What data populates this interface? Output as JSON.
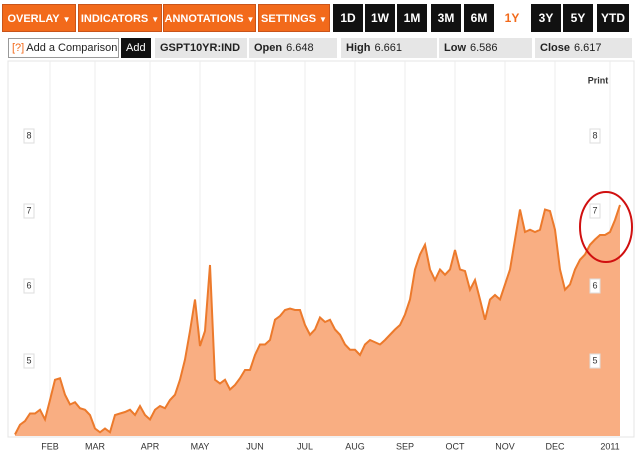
{
  "toolbar": {
    "menus": [
      "OVERLAY",
      "INDICATORS",
      "ANNOTATIONS",
      "SETTINGS"
    ],
    "ranges": [
      "1D",
      "1W",
      "1M",
      "3M",
      "6M",
      "1Y",
      "3Y",
      "5Y",
      "YTD"
    ],
    "selected": "1Y"
  },
  "quote": {
    "help": "[?]",
    "comparison": "Add a Comparison",
    "add": "Add",
    "ticker": "GSPT10YR:IND",
    "fields": [
      {
        "label": "Open",
        "value": 6.648
      },
      {
        "label": "High",
        "value": 6.661
      },
      {
        "label": "Low",
        "value": 6.586
      },
      {
        "label": "Close",
        "value": 6.617
      }
    ]
  },
  "print": "Print",
  "chart_data": {
    "type": "area",
    "line_color": "#ec7a2c",
    "fill_color": "#f9ae82",
    "categories": [
      null,
      null,
      null,
      null,
      null,
      null,
      null,
      "FEB",
      null,
      null,
      null,
      null,
      null,
      null,
      null,
      null,
      "MAR",
      null,
      null,
      null,
      null,
      null,
      null,
      null,
      null,
      null,
      null,
      "APR",
      null,
      null,
      null,
      null,
      null,
      null,
      null,
      null,
      null,
      "MAY",
      null,
      null,
      null,
      null,
      null,
      null,
      null,
      null,
      null,
      null,
      "JUN",
      null,
      null,
      null,
      null,
      null,
      null,
      null,
      null,
      null,
      "JUL",
      null,
      null,
      null,
      null,
      null,
      null,
      null,
      null,
      null,
      "AUG",
      null,
      null,
      null,
      null,
      null,
      null,
      null,
      null,
      null,
      "SEP",
      null,
      null,
      null,
      null,
      null,
      null,
      null,
      null,
      null,
      "OCT",
      null,
      null,
      null,
      null,
      null,
      null,
      null,
      null,
      null,
      "NOV",
      null,
      null,
      null,
      null,
      null,
      null,
      null,
      null,
      null,
      "DEC",
      null,
      null,
      null,
      null,
      null,
      null,
      null,
      null,
      null,
      null,
      "2011",
      null,
      null
    ],
    "values": [
      4.02,
      4.15,
      4.2,
      4.3,
      4.3,
      4.35,
      4.22,
      4.48,
      4.75,
      4.77,
      4.55,
      4.42,
      4.45,
      4.37,
      4.35,
      4.28,
      4.1,
      4.05,
      4.1,
      4.05,
      4.28,
      4.3,
      4.32,
      4.35,
      4.28,
      4.4,
      4.28,
      4.22,
      4.35,
      4.4,
      4.37,
      4.48,
      4.55,
      4.75,
      5.02,
      5.4,
      5.82,
      5.2,
      5.4,
      6.28,
      4.75,
      4.7,
      4.75,
      4.62,
      4.68,
      4.77,
      4.88,
      4.88,
      5.08,
      5.22,
      5.22,
      5.28,
      5.55,
      5.6,
      5.68,
      5.7,
      5.68,
      5.68,
      5.48,
      5.35,
      5.42,
      5.58,
      5.52,
      5.55,
      5.42,
      5.35,
      5.22,
      5.15,
      5.15,
      5.08,
      5.22,
      5.28,
      5.25,
      5.22,
      5.28,
      5.35,
      5.42,
      5.48,
      5.62,
      5.82,
      6.22,
      6.42,
      6.55,
      6.22,
      6.08,
      6.22,
      6.15,
      6.22,
      6.48,
      6.22,
      6.2,
      5.95,
      6.08,
      5.82,
      5.55,
      5.82,
      5.88,
      5.82,
      6.02,
      6.22,
      6.62,
      7.02,
      6.72,
      6.75,
      6.72,
      6.75,
      7.02,
      7.0,
      6.75,
      6.22,
      5.95,
      6.02,
      6.22,
      6.35,
      6.42,
      6.55,
      6.62,
      6.68,
      6.68,
      6.72,
      6.88,
      7.08
    ],
    "ylim": [
      4,
      9
    ],
    "yticks": [
      5,
      6,
      7,
      8
    ],
    "grid": true
  }
}
